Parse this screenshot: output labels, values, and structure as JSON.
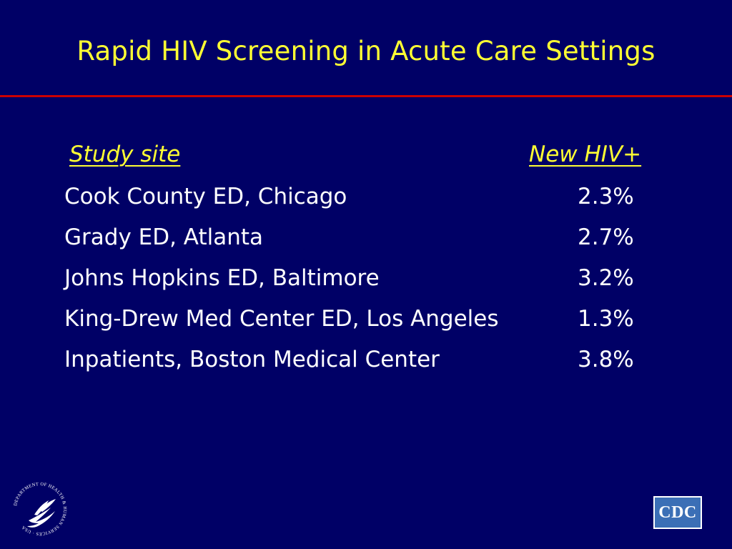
{
  "slide": {
    "title": "Rapid HIV Screening in Acute Care Settings"
  },
  "table": {
    "headers": {
      "site": "Study site",
      "value": "New HIV+"
    },
    "rows": [
      {
        "site": "Cook County ED, Chicago",
        "value": "2.3%"
      },
      {
        "site": "Grady ED, Atlanta",
        "value": "2.7%"
      },
      {
        "site": "Johns Hopkins ED, Baltimore",
        "value": "3.2%"
      },
      {
        "site": "King-Drew Med Center ED, Los Angeles",
        "value": "1.3%"
      },
      {
        "site": "Inpatients, Boston Medical Center",
        "value": "3.8%"
      }
    ]
  },
  "logos": {
    "left_icon": "hhs-seal-icon",
    "left_text": "DEPARTMENT OF HEALTH & HUMAN SERVICES · USA",
    "right_icon": "cdc-logo-icon",
    "right_text": "CDC"
  },
  "colors": {
    "background": "#000066",
    "title": "#ffff33",
    "rule": "#cc0000",
    "body_text": "#ffffff",
    "cdc_blue": "#3b6fb6"
  }
}
